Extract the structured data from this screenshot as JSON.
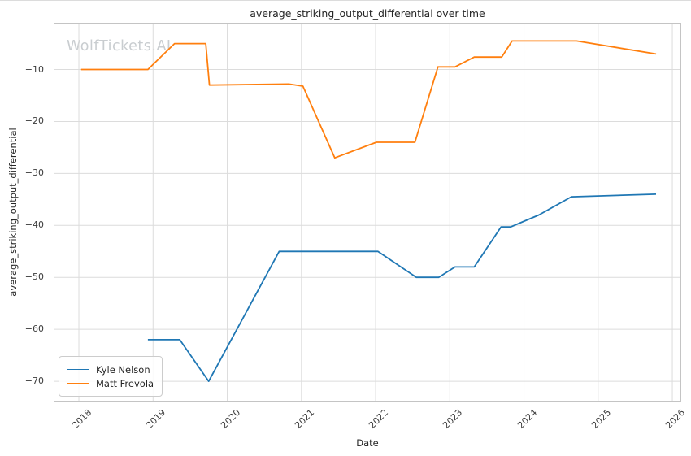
{
  "chart_data": {
    "type": "line",
    "title": "average_striking_output_differential over time",
    "xlabel": "Date",
    "ylabel": "average_striking_output_differential",
    "watermark": "WolfTickets.AI",
    "xlim": [
      2017.66,
      2026.12
    ],
    "ylim": [
      -73.9,
      -1.0
    ],
    "x_ticks": [
      2018,
      2019,
      2020,
      2021,
      2022,
      2023,
      2024,
      2025,
      2026
    ],
    "y_ticks": [
      -10,
      -20,
      -30,
      -40,
      -50,
      -60,
      -70
    ],
    "grid": true,
    "legend_position": "lower left",
    "series": [
      {
        "name": "Kyle Nelson",
        "color": "#1f77b4",
        "points": [
          [
            2018.93,
            -62
          ],
          [
            2019.36,
            -62
          ],
          [
            2019.75,
            -70
          ],
          [
            2020.7,
            -45
          ],
          [
            2022.03,
            -45
          ],
          [
            2022.55,
            -50
          ],
          [
            2022.85,
            -50
          ],
          [
            2023.07,
            -48
          ],
          [
            2023.33,
            -48
          ],
          [
            2023.69,
            -40.3
          ],
          [
            2023.82,
            -40.3
          ],
          [
            2024.2,
            -38
          ],
          [
            2024.64,
            -34.5
          ],
          [
            2025.78,
            -34
          ]
        ]
      },
      {
        "name": "Matt Frevola",
        "color": "#ff7f0e",
        "points": [
          [
            2018.03,
            -10
          ],
          [
            2018.93,
            -10
          ],
          [
            2019.29,
            -5
          ],
          [
            2019.71,
            -5
          ],
          [
            2019.76,
            -13
          ],
          [
            2020.83,
            -12.8
          ],
          [
            2021.02,
            -13.2
          ],
          [
            2021.45,
            -27
          ],
          [
            2022.01,
            -24
          ],
          [
            2022.53,
            -24
          ],
          [
            2022.84,
            -9.5
          ],
          [
            2023.07,
            -9.5
          ],
          [
            2023.33,
            -7.6
          ],
          [
            2023.7,
            -7.6
          ],
          [
            2023.84,
            -4.5
          ],
          [
            2024.71,
            -4.5
          ],
          [
            2025.78,
            -7
          ]
        ]
      }
    ]
  }
}
